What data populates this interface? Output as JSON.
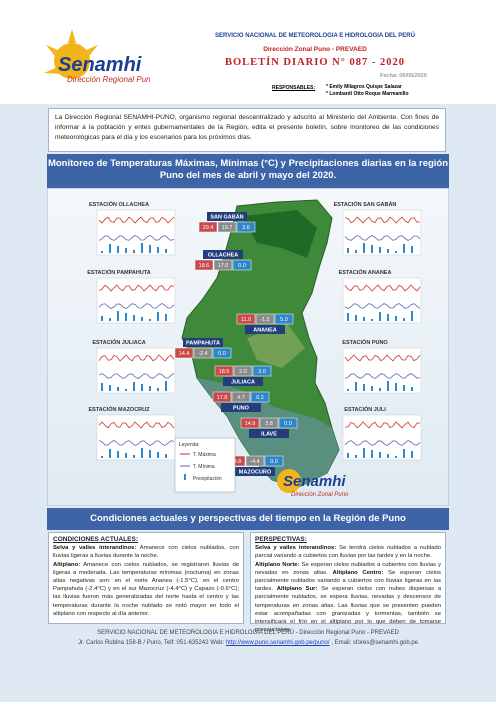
{
  "header": {
    "agency": "SERVICIO NACIONAL DE METEOROLOGIA E HIDROLOGIA DEL PERÚ",
    "office": "Dirección Zonal Puno - PREVAED",
    "bulletin": "BOLETÍN DIARIO N° 087 - 2020",
    "date": "Fecha: 06/05/2020",
    "responsible_label": "RESPONSABLES:",
    "responsibles": [
      "* Emily Milagros Quispe Salazar",
      "* Lombardi Otto Roque Marmanillo"
    ],
    "logo": "Senamhi",
    "logo_sub": "Dirección Regional Puno"
  },
  "intro": "La Dirección Regional SENAMHI-PUNO, organismo regional descentralizado y adscrito al Ministerio del Ambiente. Con fines de informar a la población y entes gubernamentales de la Región, edita el presente boletín, sobre monitoreo de las condiciones meteorológicas para el día y los escenarios para los próximos días.",
  "section1": "Monitoreo de Temperaturas Máximas, Mínimas (°C) y Precipitaciones diarias en la región Puno del mes de abril y mayo del 2020.",
  "map": {
    "stations": [
      {
        "label": "SAN GABÁN",
        "values": [
          "29.4",
          "19.7",
          "3.6"
        ]
      },
      {
        "label": "OLLACHEA",
        "values": [
          "18.6",
          "17.0",
          "0.0"
        ]
      },
      {
        "label": "ANANEA",
        "values": [
          "11.0",
          "-1.5",
          "5.0"
        ]
      },
      {
        "label": "PAMPAHUTA",
        "values": [
          "14.4",
          "-2.4",
          "0.0"
        ]
      },
      {
        "label": "JULIACA",
        "values": [
          "18.5",
          "2.0",
          "3.0"
        ]
      },
      {
        "label": "PUNO",
        "values": [
          "17.8",
          "4.7",
          "0.2"
        ]
      },
      {
        "label": "ILAVE",
        "values": [
          "14.9",
          "3.8",
          "0.0"
        ]
      },
      {
        "label": "MAZOCURO",
        "values": [
          "14.8",
          "-4.4",
          "0.0"
        ]
      }
    ],
    "panels": [
      "ESTACIÓN OLLACHEA",
      "ESTACIÓN PAMPAHUTA",
      "ESTACIÓN JULIACA",
      "ESTACIÓN MAZOCRUZ",
      "ESTACIÓN SAN GABÁN",
      "ESTACIÓN ANANEA",
      "ESTACIÓN PUNO",
      "ESTACIÓN JULI"
    ],
    "legend": {
      "title": "Leyenda:",
      "items": [
        "T. Máxima",
        "T. Mínima",
        "Precipitación"
      ]
    },
    "watermark": "Senamhi",
    "watermark_sub": "Dirección Zonal Puno"
  },
  "section2": "Condiciones actuales y perspectivas del tiempo en la Región de Puno",
  "current": {
    "title": "CONDICIONES ACTUALES:",
    "p1_head": "Selva y valles interandinos:",
    "p1": " Amanece con cielos nublados, con lluvias ligeras a lluvias durante la noche.",
    "p2_head": "Altiplano:",
    "p2": " Amanece con cielos nublados, se registraron lluvias de ligeras a moderada. Las temperaturas mínimas (nocturna) en zonas altas negativas son: en el norte Ananea (-1.5°C), en el centro Pampahuta (-2.4°C) y en el sur Mazocruz (-4.4°C) y Capazo (-0.6°C); las lluvias fueron más generalizadas del norte hasta el centro y las temperaturas durante la noche nublado se notó mayor en todo el altiplano con respecto al día anterior."
  },
  "outlook": {
    "title": "PERSPECTIVAS:",
    "p1_head": "Selva y valles interandinos:",
    "p1": " Se tendrá cielos nublados a nublado parcial variando a cubiertos con lluvias por las tardes y en la noche.",
    "p2_head": "Altiplano Norte:",
    "p2": " Se esperan cielos nublados a cubiertos con lluvias y nevadas en zonas altas.",
    "p3_head": "Altiplano Centro:",
    "p3": " Se esperan cielos parcialmente nublados variando a cubiertos con lluvias ligeras en las tardes.",
    "p4_head": "Altiplano Sur:",
    "p4": " Se esperan cielos con nubes dispersas a parcialmente nublados, se espera lluvias, nevadas y descensos de temperaturas en zonas altas. Las lluvias que se presenten pueden estar acompañadas con granizadas y tormentas, también se intensificará el frío en el altiplano por lo que deben de tomarse precauciones."
  },
  "footer": {
    "line1": "SERVICIO NACIONAL DE METEOROLOGIA E HIDROLOGIA DEL PERÚ - Dirección Regional Puno - PREVAED",
    "line2_a": "Jr. Carlos Rubina 158-B / Puno, Telf: 051-635242 Web: ",
    "url": "http://www.puno.senamhi.gob.pe/puno/",
    "line2_b": " , Email: sfores@senamhi.gob.pe"
  }
}
